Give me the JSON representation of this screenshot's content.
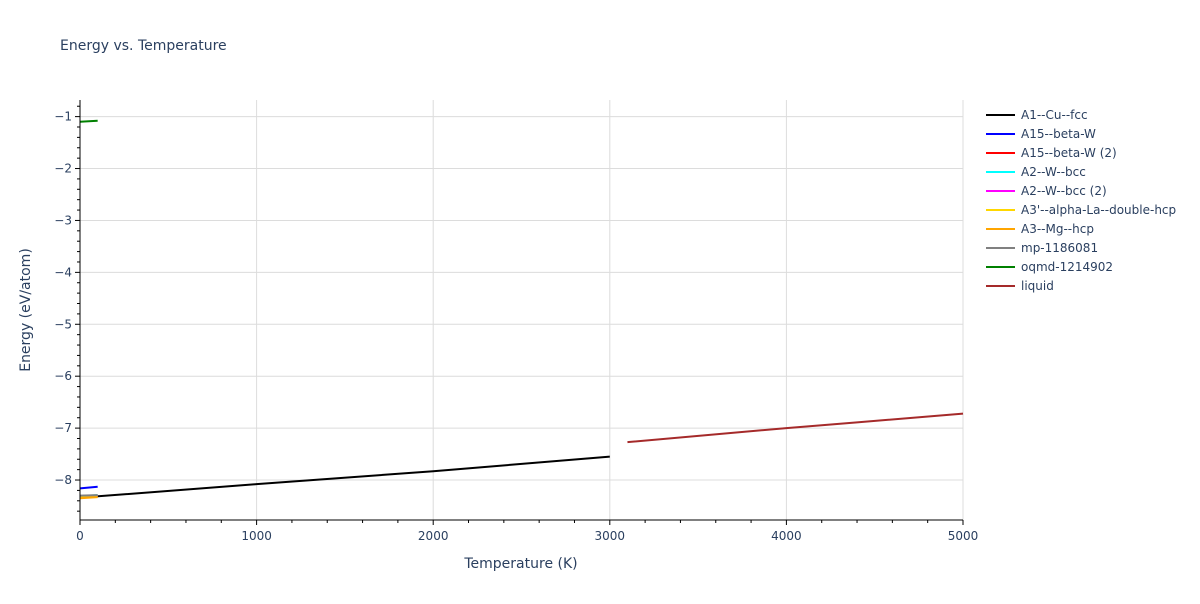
{
  "chart_data": {
    "type": "line",
    "title": "Energy vs. Temperature",
    "xlabel": "Temperature (K)",
    "ylabel": "Energy (eV/atom)",
    "xlim": [
      0,
      5000
    ],
    "ylim": [
      -8.77,
      -0.68
    ],
    "x_ticks": [
      0,
      1000,
      2000,
      3000,
      4000,
      5000
    ],
    "x_tick_labels": [
      "0",
      "1000",
      "2000",
      "3000",
      "4000",
      "5000"
    ],
    "y_ticks": [
      -1,
      -2,
      -3,
      -4,
      -5,
      -6,
      -7,
      -8
    ],
    "y_tick_labels": [
      "−1",
      "−2",
      "−3",
      "−4",
      "−5",
      "−6",
      "−7",
      "−8"
    ],
    "grid": true,
    "legend_position": "right",
    "series": [
      {
        "name": "A1--Cu--fcc",
        "color": "#000000",
        "x": [
          0,
          1000,
          2000,
          3000
        ],
        "y": [
          -8.34,
          -8.08,
          -7.83,
          -7.55
        ]
      },
      {
        "name": "A15--beta-W",
        "color": "#0000ff",
        "x": [
          0,
          100
        ],
        "y": [
          -8.16,
          -8.13
        ]
      },
      {
        "name": "A15--beta-W (2)",
        "color": "#ff0000",
        "x": [
          0,
          100
        ],
        "y": [
          -8.31,
          -8.3
        ]
      },
      {
        "name": "A2--W--bcc",
        "color": "#00ffff",
        "x": [
          0,
          100
        ],
        "y": [
          -8.31,
          -8.29
        ]
      },
      {
        "name": "A2--W--bcc (2)",
        "color": "#ff00ff",
        "x": [
          0,
          100
        ],
        "y": [
          -8.32,
          -8.3
        ]
      },
      {
        "name": "A3'--alpha-La--double-hcp",
        "color": "#ffd700",
        "x": [
          0,
          100
        ],
        "y": [
          -8.34,
          -8.32
        ]
      },
      {
        "name": "A3--Mg--hcp",
        "color": "#ffa500",
        "x": [
          0,
          100
        ],
        "y": [
          -8.35,
          -8.33
        ]
      },
      {
        "name": "mp-1186081",
        "color": "#808080",
        "x": [
          0,
          100
        ],
        "y": [
          -8.3,
          -8.29
        ]
      },
      {
        "name": "oqmd-1214902",
        "color": "#008000",
        "x": [
          0,
          100
        ],
        "y": [
          -1.1,
          -1.08
        ]
      },
      {
        "name": "liquid",
        "color": "#a52a2a",
        "x": [
          3100,
          4000,
          4400,
          5000
        ],
        "y": [
          -7.27,
          -7.0,
          -6.89,
          -6.72
        ]
      }
    ]
  }
}
